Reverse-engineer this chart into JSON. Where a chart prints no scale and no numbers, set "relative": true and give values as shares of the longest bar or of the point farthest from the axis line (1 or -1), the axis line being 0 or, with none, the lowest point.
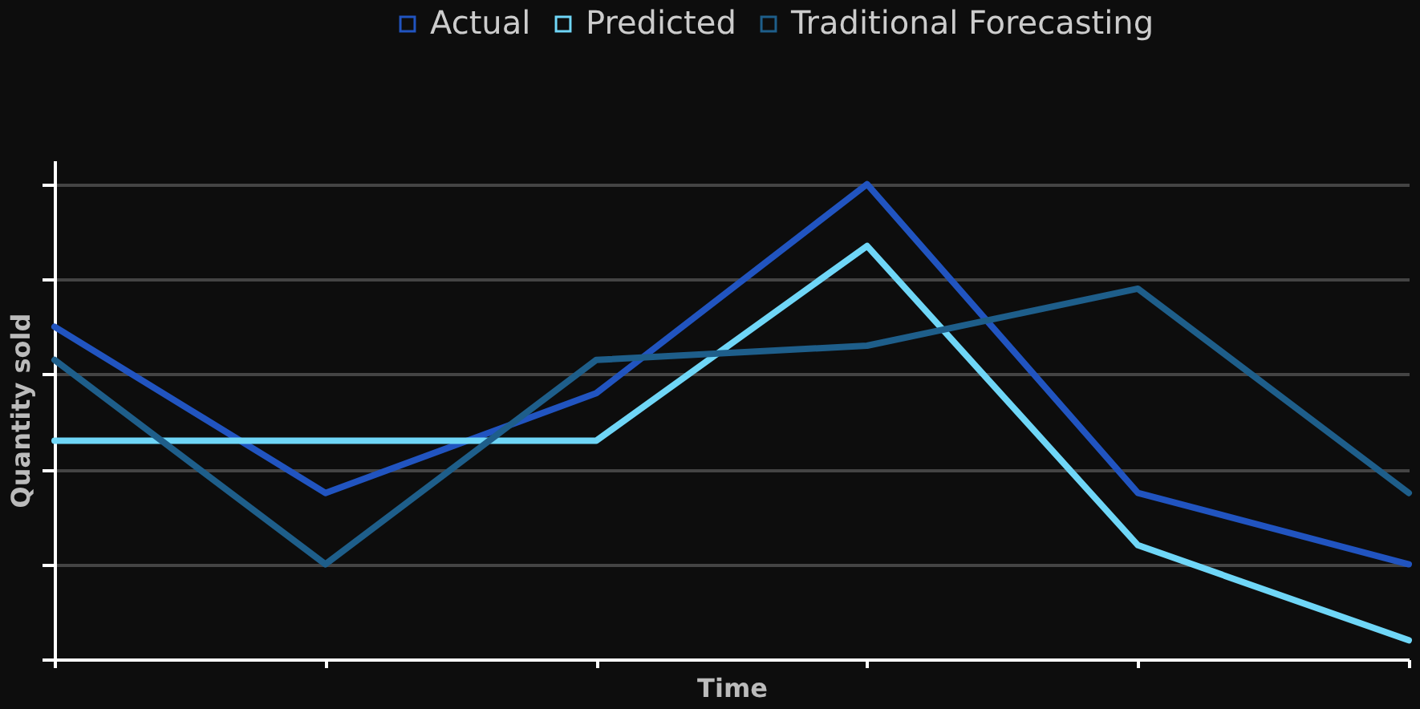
{
  "chart_data": {
    "type": "line",
    "relative": true,
    "xlabel": "Time",
    "ylabel": "Quantity sold",
    "categories": [
      null,
      null,
      null,
      null,
      null,
      null
    ],
    "series": [
      {
        "name": "Actual",
        "color": "#2154c0",
        "values": [
          0.7,
          0.35,
          0.56,
          1,
          0.35,
          0.2
        ]
      },
      {
        "name": "Predicted",
        "color": "#6fd6f7",
        "values": [
          0.46,
          0.46,
          0.46,
          0.87,
          0.24,
          0.04
        ]
      },
      {
        "name": "Traditional Forecasting",
        "color": "#1e5e8a",
        "values": [
          0.63,
          0.2,
          0.63,
          0.66,
          0.78,
          0.35
        ]
      }
    ],
    "grid": "y",
    "legend": "top right",
    "tick_labels": false,
    "marker": "none",
    "line_style": "solid"
  }
}
